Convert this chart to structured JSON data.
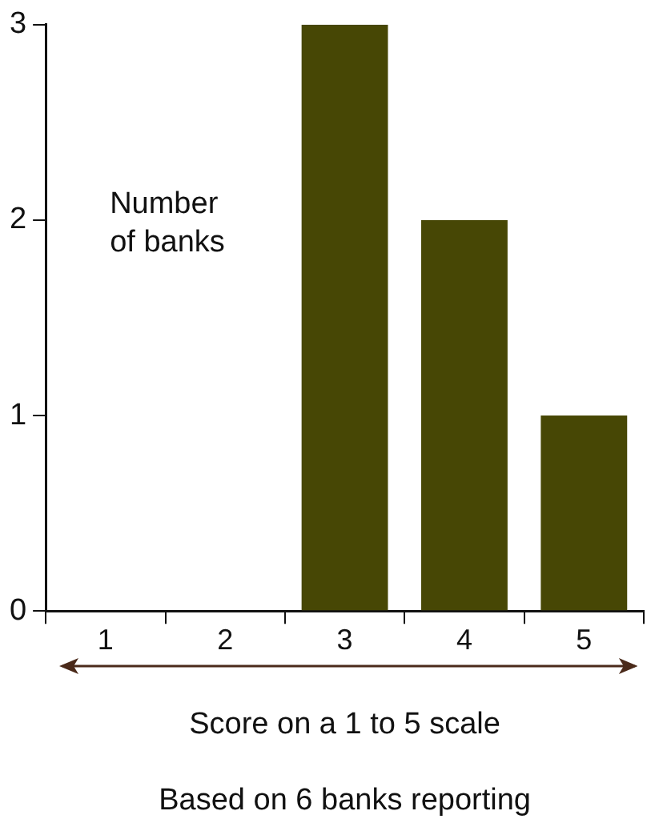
{
  "chart_data": {
    "type": "bar",
    "ylabel": "Number\nof banks",
    "xlabel": "Score on a 1 to 5 scale",
    "annotations": [
      "Based on 6 banks reporting"
    ],
    "categories": [
      "1",
      "2",
      "3",
      "4",
      "5"
    ],
    "values": [
      0,
      0,
      3,
      2,
      1
    ],
    "color": "#474705",
    "ylim": [
      0,
      3
    ],
    "yticks": [
      0,
      1,
      2,
      3
    ],
    "grid": false,
    "legend": false
  }
}
